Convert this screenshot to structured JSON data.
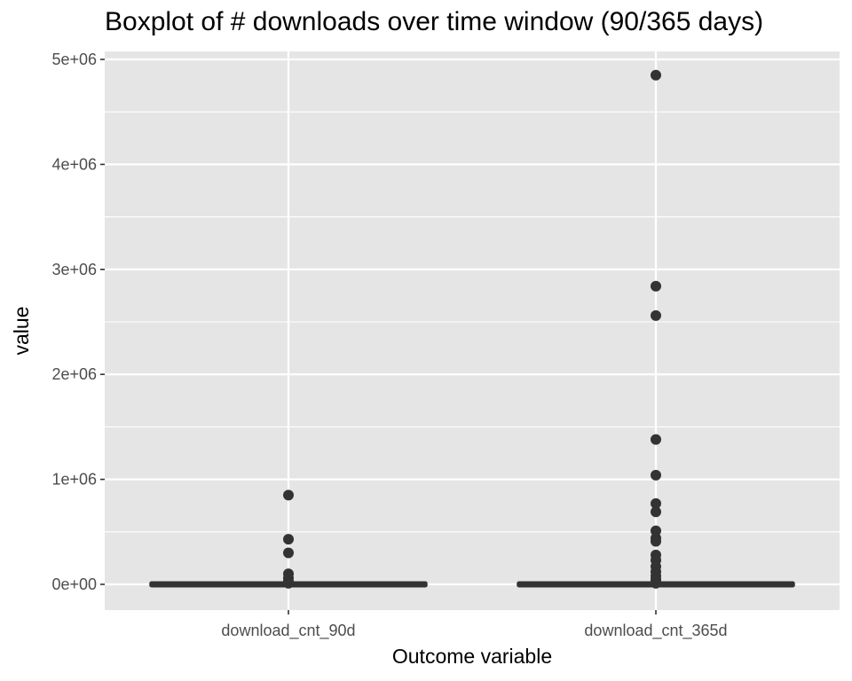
{
  "chart_data": {
    "type": "box",
    "title": "Boxplot of # downloads over time window (90/365 days)",
    "xlabel": "Outcome variable",
    "ylabel": "value",
    "ylim": [
      -470000,
      5000000
    ],
    "y_ticks": [
      0,
      1000000,
      2000000,
      3000000,
      4000000,
      5000000
    ],
    "y_tick_labels": [
      "0e+00",
      "1e+06",
      "2e+06",
      "3e+06",
      "4e+06",
      "5e+06"
    ],
    "categories": [
      "download_cnt_90d",
      "download_cnt_365d"
    ],
    "grid": true,
    "boxes": [
      {
        "category": "download_cnt_90d",
        "min": 0,
        "q1": 0,
        "median": 0,
        "q3": 0,
        "max": 0,
        "outliers": [
          850000,
          430000,
          300000,
          100000,
          60000,
          30000,
          10000
        ]
      },
      {
        "category": "download_cnt_365d",
        "min": 0,
        "q1": 0,
        "median": 0,
        "q3": 0,
        "max": 0,
        "outliers": [
          4850000,
          2840000,
          2560000,
          1380000,
          1040000,
          770000,
          690000,
          510000,
          440000,
          410000,
          280000,
          230000,
          170000,
          120000,
          80000,
          50000,
          30000,
          10000
        ]
      }
    ],
    "colors": {
      "panel": "#e5e5e5",
      "grid": "#ffffff",
      "mark": "#333333",
      "text": "#4d4d4d"
    }
  }
}
